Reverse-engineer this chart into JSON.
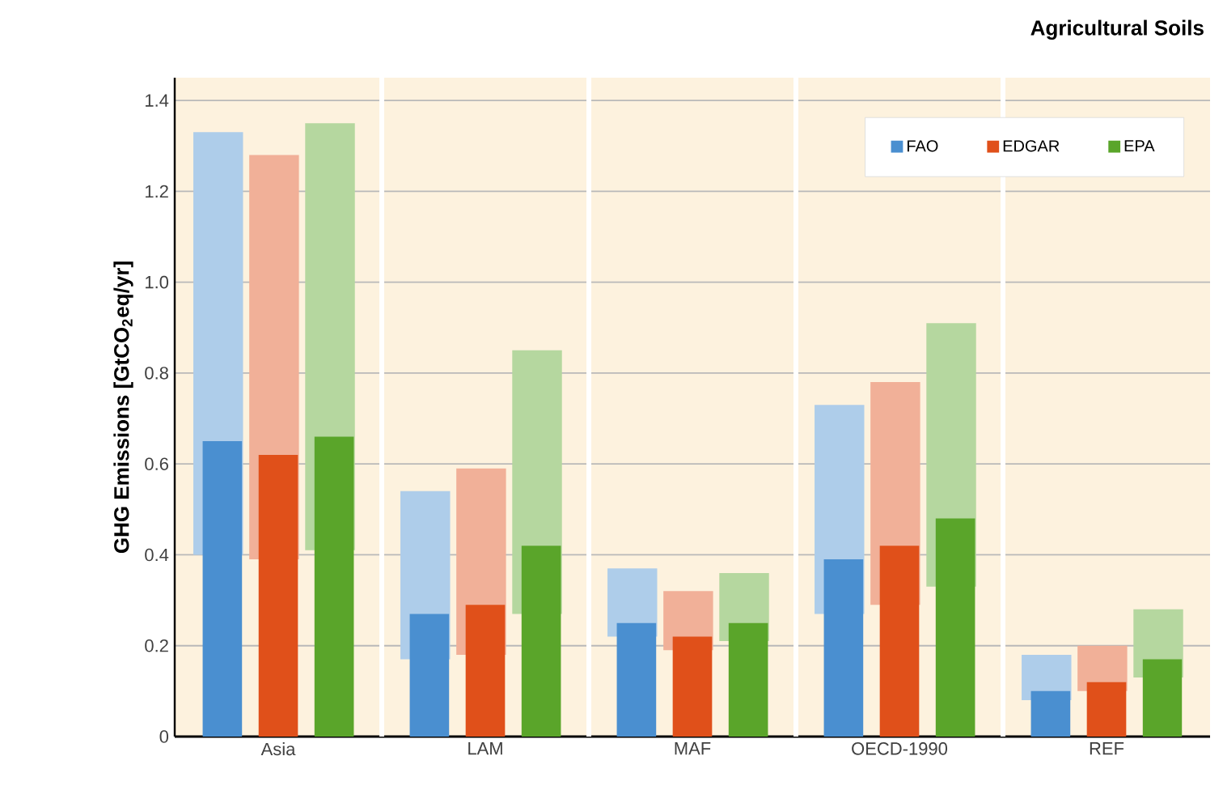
{
  "chart_data": {
    "type": "bar",
    "title": "Agricultural Soils",
    "ylabel": "GHG Emissions [GtCO$_{2}$eq/yr]",
    "categories": [
      "Asia",
      "LAM",
      "MAF",
      "OECD-1990",
      "REF"
    ],
    "series": [
      {
        "color": "#aecdea",
        "base": [
          0.4,
          0.17,
          0.22,
          0.27,
          0.08
        ],
        "values": [
          0.93,
          0.37,
          0.15,
          0.46,
          0.1
        ]
      },
      {
        "color": "#f1b098",
        "base": [
          0.39,
          0.18,
          0.19,
          0.29,
          0.1
        ],
        "values": [
          0.89,
          0.41,
          0.13,
          0.49,
          0.1
        ]
      },
      {
        "color": "#b5d79f",
        "base": [
          0.41,
          0.27,
          0.21,
          0.33,
          0.13
        ],
        "values": [
          0.94,
          0.58,
          0.15,
          0.58,
          0.15
        ]
      },
      {
        "name": "FAO",
        "color": "#4a8fd0",
        "values": [
          0.65,
          0.27,
          0.25,
          0.39,
          0.1
        ]
      },
      {
        "name": "EDGAR",
        "color": "#e0501a",
        "values": [
          0.62,
          0.29,
          0.22,
          0.42,
          0.12
        ]
      },
      {
        "name": "EPA",
        "color": "#5aa52a",
        "values": [
          0.66,
          0.42,
          0.25,
          0.48,
          0.17
        ]
      }
    ],
    "ylim": [
      0,
      1.45
    ],
    "yticks": [
      0,
      0.2,
      0.4,
      0.6,
      0.8,
      {
        "value": 1,
        "label": "1.0"
      },
      1.2,
      1.4
    ],
    "grid": "y",
    "legend": "top right"
  }
}
